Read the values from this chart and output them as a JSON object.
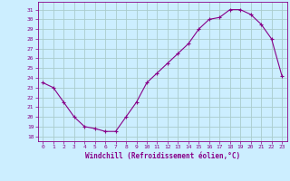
{
  "x": [
    0,
    1,
    2,
    3,
    4,
    5,
    6,
    7,
    8,
    9,
    10,
    11,
    12,
    13,
    14,
    15,
    16,
    17,
    18,
    19,
    20,
    21,
    22,
    23
  ],
  "y": [
    23.5,
    23.0,
    21.5,
    20.0,
    19.0,
    18.8,
    18.5,
    18.5,
    20.0,
    21.5,
    23.5,
    24.5,
    25.5,
    26.5,
    27.5,
    29.0,
    30.0,
    30.2,
    31.0,
    31.0,
    30.5,
    29.5,
    28.0,
    24.2
  ],
  "line_color": "#880088",
  "marker": "+",
  "bg_color": "#cceeff",
  "grid_color": "#aacccc",
  "xlabel": "Windchill (Refroidissement éolien,°C)",
  "ylabel_ticks": [
    18,
    19,
    20,
    21,
    22,
    23,
    24,
    25,
    26,
    27,
    28,
    29,
    30,
    31
  ],
  "xlim": [
    -0.5,
    23.5
  ],
  "ylim": [
    17.5,
    31.8
  ],
  "xticks": [
    0,
    1,
    2,
    3,
    4,
    5,
    6,
    7,
    8,
    9,
    10,
    11,
    12,
    13,
    14,
    15,
    16,
    17,
    18,
    19,
    20,
    21,
    22,
    23
  ]
}
